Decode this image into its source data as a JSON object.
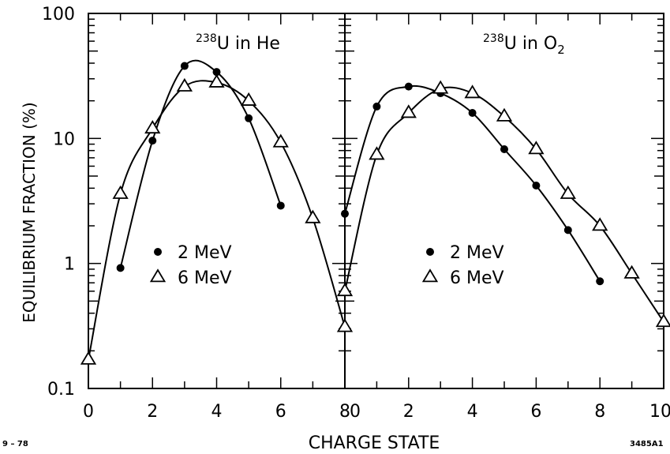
{
  "chart_data": [
    {
      "type": "line",
      "panel_label_base": "238",
      "panel_label_rest": "U in He",
      "xlabel": "CHARGE STATE",
      "ylabel": "EQUILIBRIUM FRACTION (%)",
      "yscale": "log",
      "ylim": [
        0.1,
        100
      ],
      "xlim": [
        0,
        8
      ],
      "x_ticks": [
        "0",
        "2",
        "4",
        "6",
        "8"
      ],
      "y_ticks": [
        "0.1",
        "1",
        "10",
        "100"
      ],
      "grid": false,
      "legend_placement": "center",
      "series": [
        {
          "name": "2 MeV",
          "marker": "filled-circle",
          "x": [
            1,
            2,
            3,
            4,
            5,
            6
          ],
          "y": [
            0.92,
            9.6,
            38,
            34,
            14.5,
            2.9
          ]
        },
        {
          "name": "6 MeV",
          "marker": "open-triangle",
          "x": [
            0,
            1,
            2,
            3,
            4,
            5,
            6,
            7,
            8
          ],
          "y": [
            0.17,
            3.6,
            12,
            26,
            28,
            20,
            9.3,
            2.3,
            0.31
          ]
        }
      ]
    },
    {
      "type": "line",
      "panel_label_base": "238",
      "panel_label_rest": "U in O",
      "panel_label_sub": "2",
      "xlabel": "CHARGE STATE",
      "yscale": "log",
      "ylim": [
        0.1,
        100
      ],
      "xlim": [
        0,
        10
      ],
      "x_ticks": [
        "0",
        "2",
        "4",
        "6",
        "8",
        "10"
      ],
      "grid": false,
      "legend_placement": "center",
      "series": [
        {
          "name": "2 MeV",
          "marker": "filled-circle",
          "x": [
            0,
            1,
            2,
            3,
            4,
            5,
            6,
            7,
            8
          ],
          "y": [
            2.5,
            18,
            26,
            23,
            16,
            8.2,
            4.2,
            1.85,
            0.72
          ]
        },
        {
          "name": "6 MeV",
          "marker": "open-triangle",
          "x": [
            0,
            1,
            2,
            3,
            4,
            5,
            6,
            7,
            8,
            9,
            10
          ],
          "y": [
            0.6,
            7.4,
            16,
            25,
            23,
            15,
            8.2,
            3.6,
            2,
            0.83,
            0.34
          ]
        }
      ]
    }
  ],
  "footer": {
    "left_code": "9 – 78",
    "right_code": "3485A1"
  }
}
